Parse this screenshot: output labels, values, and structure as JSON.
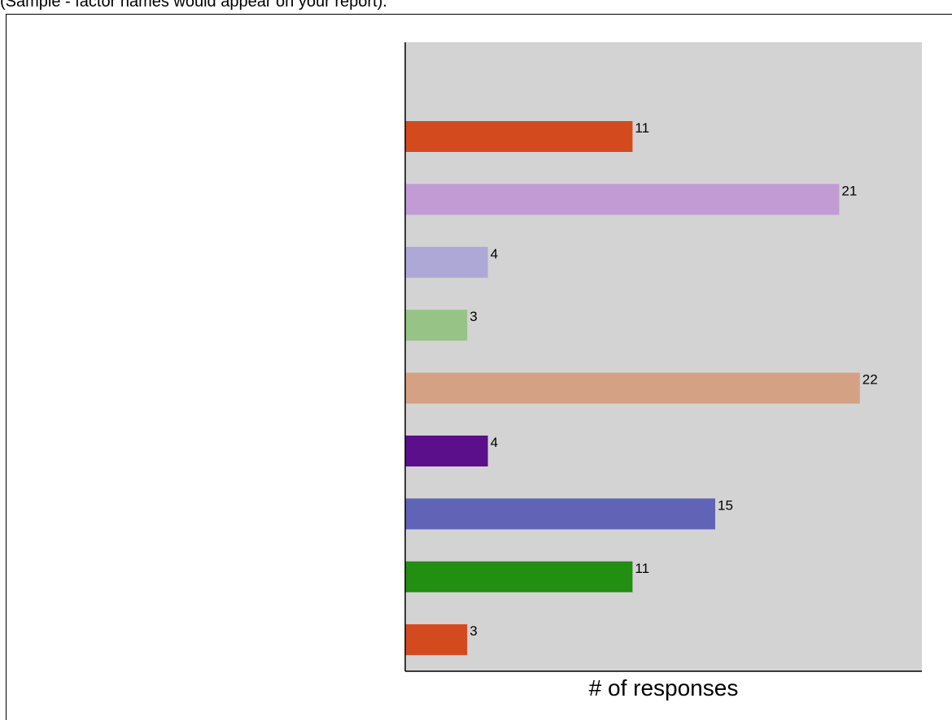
{
  "caption": "(Sample - factor names would appear on your report).",
  "chart_data": {
    "type": "bar",
    "orientation": "horizontal",
    "xlabel": "# of responses",
    "ylabel": "",
    "title": "",
    "grid": false,
    "xlim": [
      0,
      25
    ],
    "categories": [
      "",
      "",
      "",
      "",
      "",
      "",
      "",
      "",
      ""
    ],
    "values": [
      11,
      21,
      4,
      3,
      22,
      4,
      15,
      11,
      3
    ],
    "colors": [
      "#d44a1f",
      "#c29bd4",
      "#ada8d6",
      "#98c387",
      "#d4a185",
      "#5b0f8b",
      "#6163b6",
      "#228e12",
      "#d44a1f"
    ],
    "plot_background": "#d3d3d3"
  }
}
